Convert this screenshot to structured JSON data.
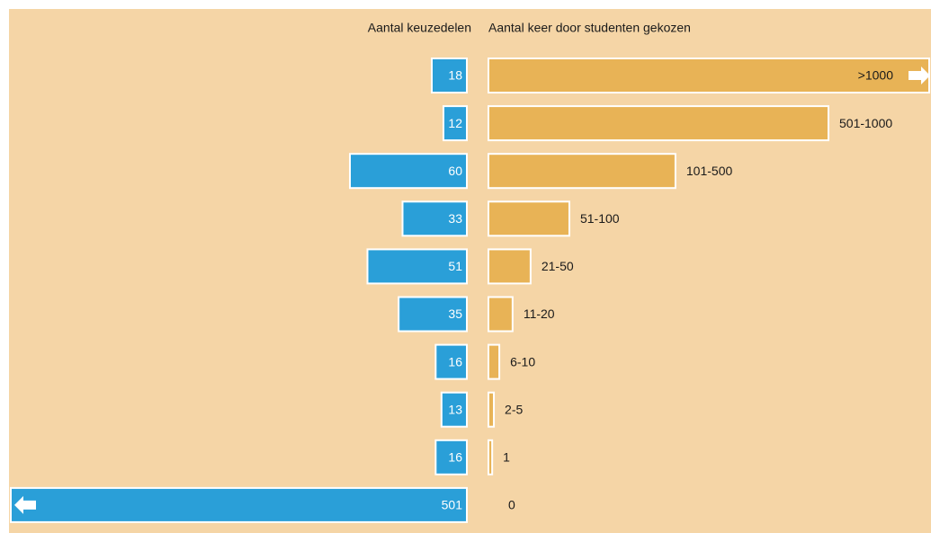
{
  "chart_data": {
    "type": "butterfly-bar",
    "categories": [
      ">1000",
      "501-1000",
      "101-500",
      "51-100",
      "21-50",
      "11-20",
      "6-10",
      "2-5",
      "1",
      "0"
    ],
    "series": [
      {
        "name": "Aantal keuzedelen",
        "color": "#2a9fd8",
        "values": [
          18,
          12,
          60,
          33,
          51,
          35,
          16,
          13,
          16,
          501
        ],
        "xlim": [
          0,
          60
        ]
      },
      {
        "name": "Aantal keer door studenten gekozen",
        "color": "#e8b356",
        "values": [
          1300,
          1000,
          550,
          238,
          124,
          71,
          32,
          16,
          11,
          0
        ],
        "xlim": [
          0,
          1000
        ]
      }
    ]
  }
}
